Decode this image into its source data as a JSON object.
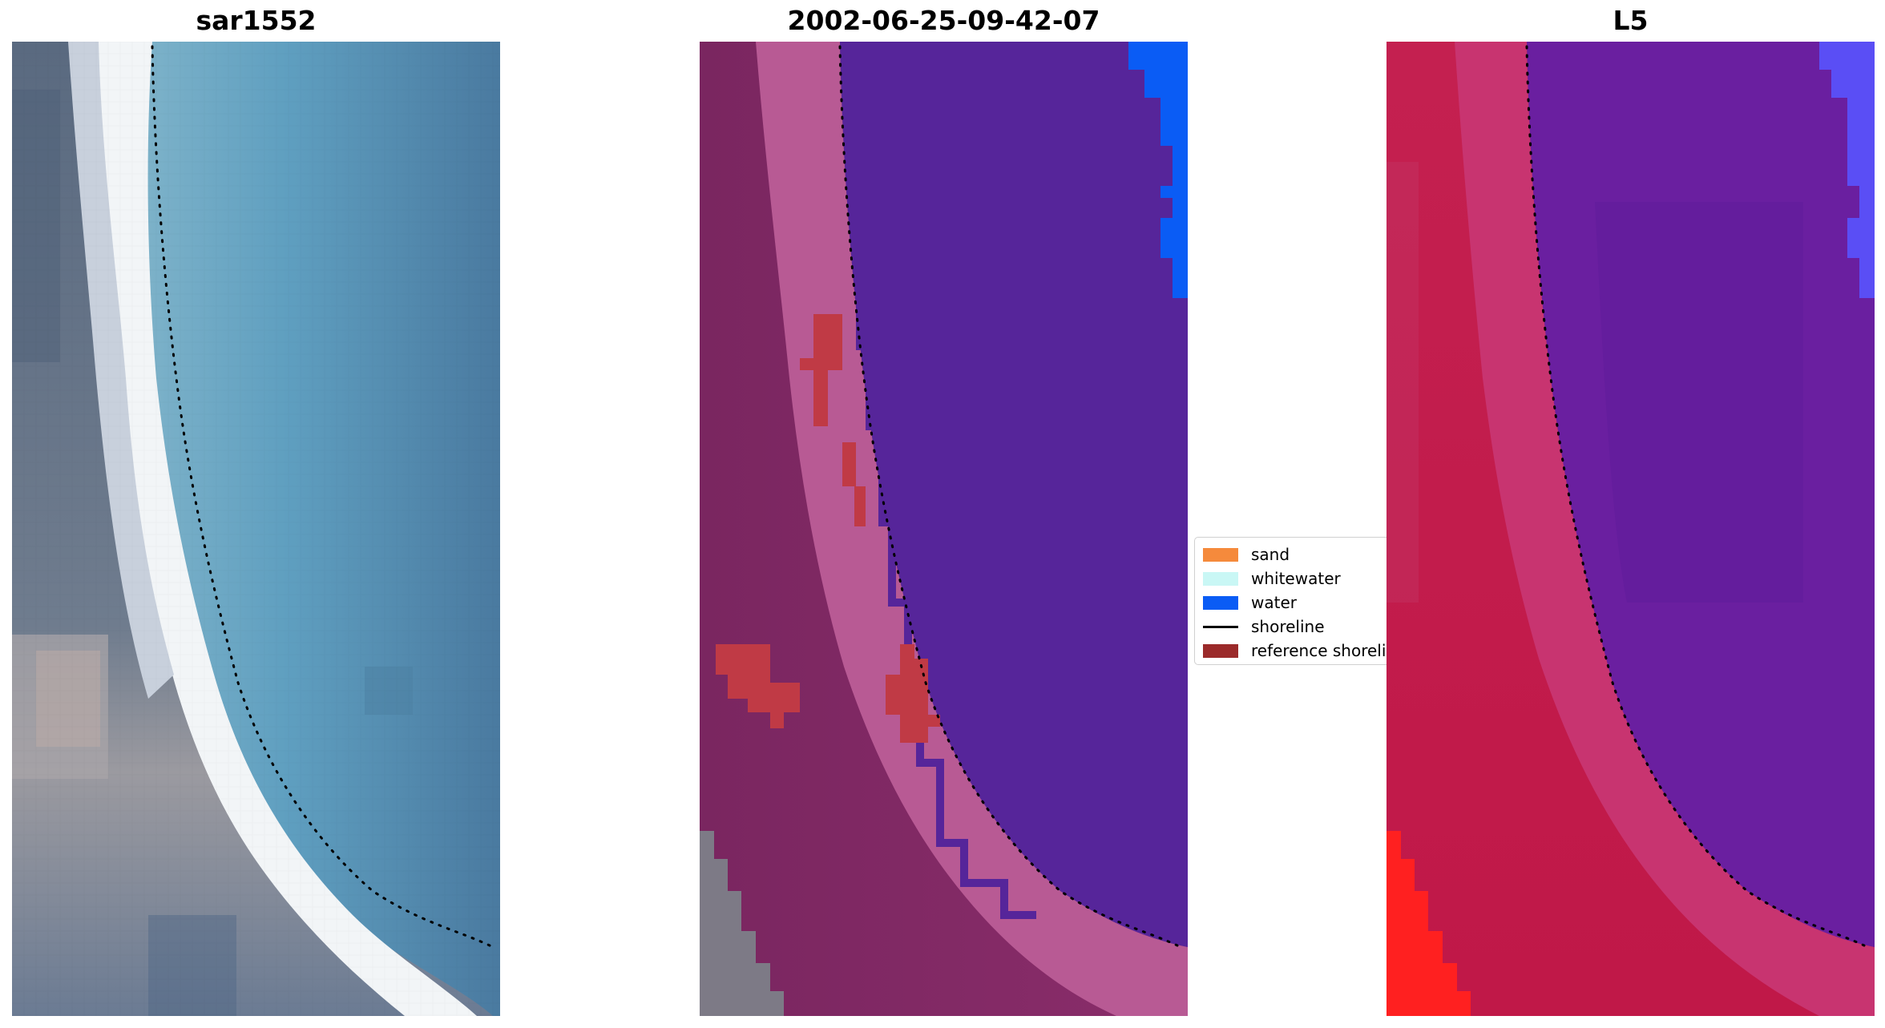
{
  "panels": [
    {
      "title": "sar1552"
    },
    {
      "title": "2002-06-25-09-42-07"
    },
    {
      "title": "L5"
    }
  ],
  "legend": {
    "items": [
      {
        "label": "sand",
        "color": "#f58a3c",
        "type": "patch"
      },
      {
        "label": "whitewater",
        "color": "#c9f7f5",
        "type": "patch"
      },
      {
        "label": "water",
        "color": "#0a5cf5",
        "type": "patch"
      },
      {
        "label": "shoreline",
        "color": "#000000",
        "type": "line"
      },
      {
        "label": "reference shoreline",
        "color": "#9b2a2a",
        "type": "patch"
      }
    ]
  },
  "colors": {
    "water_blue": "#4a84ab",
    "surf_white": "#f2f5f7",
    "land_grey": "#5f6f86",
    "classified_water": "#56259a",
    "classified_land": "#7c2762",
    "classified_swash": "#b85a94",
    "ref_shoreline_patch": "#c03a45",
    "index_water": "#6a1fa0",
    "index_land": "#c0204e",
    "index_high": "#ff2020"
  }
}
